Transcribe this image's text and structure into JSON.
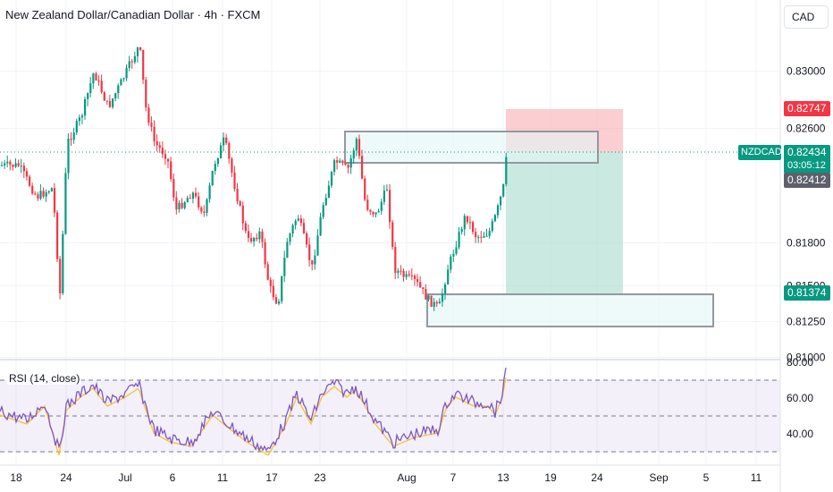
{
  "header": {
    "title": "New Zealand Dollar/Canadian Dollar · 4h · FXCM",
    "currency_button": "CAD"
  },
  "price_axis": {
    "ticks": [
      "0.83000",
      "0.82600",
      "0.81800",
      "0.81500",
      "0.81250",
      "0.81000"
    ],
    "labels": {
      "stop": "0.82747",
      "symbol": "NZDCAD",
      "last": "0.82434",
      "countdown": "03:05:12",
      "entry": "0.82412",
      "target": "0.81374"
    }
  },
  "rsi": {
    "label": "RSI (14, close)",
    "ticks": [
      "80.00",
      "60.00",
      "40.00"
    ]
  },
  "time_axis": {
    "labels": [
      "18",
      "24",
      "Jul",
      "6",
      "11",
      "17",
      "23",
      "Aug",
      "7",
      "13",
      "19",
      "24",
      "Sep",
      "5",
      "11"
    ]
  },
  "colors": {
    "up": "#089981",
    "down": "#f23645",
    "rsi": "#7e57c2",
    "rsi_ma": "#f7c331",
    "stop_zone": "#f7a5ab",
    "target_zone": "#9fd9c8",
    "box": "#e3f6f6"
  }
}
